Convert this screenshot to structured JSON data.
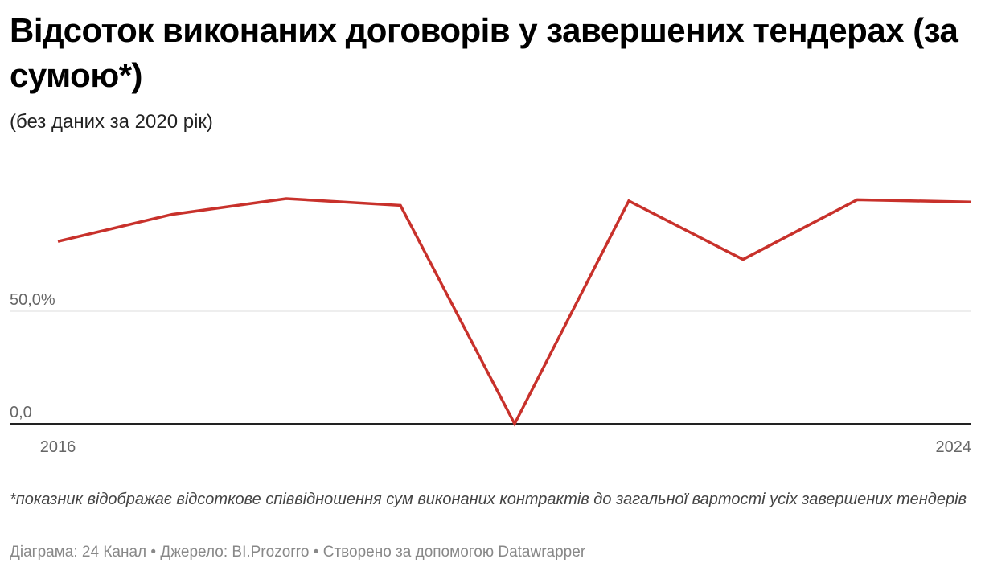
{
  "title": "Відсоток виконаних договорів у завершених тендерах (за сумою*)",
  "subtitle": "(без даних за 2020 рік)",
  "chart_data": {
    "type": "line",
    "title": "Відсоток виконаних договорів у завершених тендерах (за сумою*)",
    "subtitle": "(без даних за 2020 рік)",
    "x": [
      2016,
      2017,
      2018,
      2019,
      2020,
      2021,
      2022,
      2023,
      2024
    ],
    "series": [
      {
        "values": [
          81.0,
          93.0,
          100.0,
          97.0,
          0.0,
          99.0,
          73.0,
          99.5,
          98.5
        ]
      }
    ],
    "y_ticks": [
      {
        "value": 50,
        "label": "50,0%"
      },
      {
        "value": 0,
        "label": "0,0"
      }
    ],
    "x_tick_labels": [
      {
        "value": 2016,
        "label": "2016"
      },
      {
        "value": 2024,
        "label": "2024"
      }
    ],
    "ylim": [
      0,
      100
    ],
    "xlim": [
      2016,
      2024
    ],
    "grid": true,
    "line_color": "#c8312b"
  },
  "notes": "*показник відображає відсоткове співвідношення сум виконаних контрактів до загальної вартості усіх завершених тендерів",
  "footer": {
    "chart_label": "Діаграма: 24 Канал",
    "source_label": "Джерело: BI.Prozorro",
    "tool_label": "Створено за допомогою Datawrapper"
  }
}
